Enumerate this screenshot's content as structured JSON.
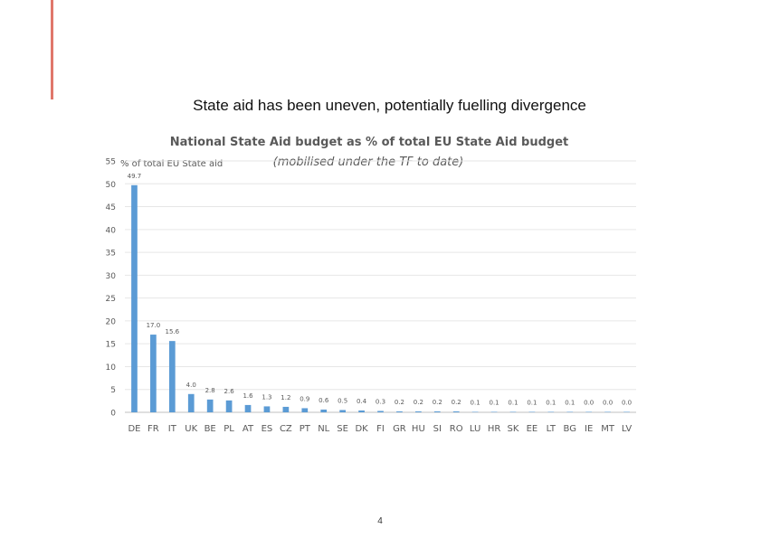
{
  "slide": {
    "title": "State aid has been uneven, potentially fuelling divergence",
    "page_number": "4",
    "accent_color": "#e0776b"
  },
  "chart_data": {
    "type": "bar",
    "title": "National State Aid budget as % of total EU State Aid budget",
    "subtitle": "(mobilised under the TF to date)",
    "ylabel": "% of total EU State aid",
    "xlabel": "",
    "ylim": [
      0,
      55
    ],
    "yticks": [
      0,
      5,
      10,
      15,
      20,
      25,
      30,
      35,
      40,
      45,
      50,
      55
    ],
    "grid": true,
    "bar_color": "#5b9bd5",
    "categories": [
      "DE",
      "FR",
      "IT",
      "UK",
      "BE",
      "PL",
      "AT",
      "ES",
      "CZ",
      "PT",
      "NL",
      "SE",
      "DK",
      "FI",
      "GR",
      "HU",
      "SI",
      "RO",
      "LU",
      "HR",
      "SK",
      "EE",
      "LT",
      "BG",
      "IE",
      "MT",
      "LV"
    ],
    "values": [
      49.7,
      17.0,
      15.6,
      4.0,
      2.8,
      2.6,
      1.6,
      1.3,
      1.2,
      0.9,
      0.6,
      0.5,
      0.4,
      0.3,
      0.2,
      0.2,
      0.2,
      0.2,
      0.1,
      0.1,
      0.1,
      0.1,
      0.1,
      0.1,
      0.0,
      0.0,
      0.0
    ],
    "value_labels": [
      "49.7",
      "17.0",
      "15.6",
      "4.0",
      "2.8",
      "2.6",
      "1.6",
      "1.3",
      "1.2",
      "0.9",
      "0.6",
      "0.5",
      "0.4",
      "0.3",
      "0.2",
      "0.2",
      "0.2",
      "0.2",
      "0.1",
      "0.1",
      "0.1",
      "0.1",
      "0.1",
      "0.1",
      "0.0",
      "0.0",
      "0.0"
    ]
  }
}
